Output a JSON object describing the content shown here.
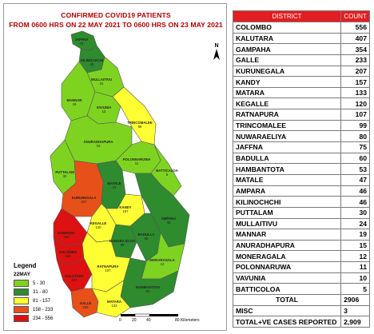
{
  "map": {
    "title_line1": "CONFIRMED COVID19 PATIENTS",
    "title_line2": "FROM 0600 HRS ON 22 MAY 2021 TO 0600 HRS ON 23 MAY 2021",
    "north_label": "N",
    "districts": [
      {
        "name": "JAFFNA",
        "count": "75",
        "color": "#2e8b2e"
      },
      {
        "name": "KILINOCHCHI",
        "count": "46",
        "color": "#2e8b2e"
      },
      {
        "name": "MULLAITIVU",
        "count": "24",
        "color": "#7ed321"
      },
      {
        "name": "MANNAR",
        "count": "19",
        "color": "#7ed321"
      },
      {
        "name": "VAVUNIA",
        "count": "10",
        "color": "#7ed321"
      },
      {
        "name": "TRINCOMALEE",
        "count": "99",
        "color": "#ffff33"
      },
      {
        "name": "ANURADHAPURA",
        "count": "15",
        "color": "#7ed321"
      },
      {
        "name": "PUTTALAM",
        "count": "30",
        "color": "#7ed321"
      },
      {
        "name": "POLONNARUWA",
        "count": "11",
        "color": "#7ed321"
      },
      {
        "name": "BATTICALOA",
        "count": "5",
        "color": "#7ed321"
      },
      {
        "name": "KURUNEGALA",
        "count": "207",
        "color": "#e8501a"
      },
      {
        "name": "MATALE",
        "count": "47",
        "color": "#2e8b2e"
      },
      {
        "name": "AMPARA",
        "count": "46",
        "color": "#2e8b2e"
      },
      {
        "name": "KANDY",
        "count": "157",
        "color": "#ffff33"
      },
      {
        "name": "KEGALLE",
        "count": "120",
        "color": "#ffff33"
      },
      {
        "name": "GAMPAHA",
        "count": "354",
        "color": "#dd1111"
      },
      {
        "name": "NUWARA ELIYA",
        "count": "80",
        "color": "#2e8b2e"
      },
      {
        "name": "BADULLA",
        "count": "60",
        "color": "#2e8b2e"
      },
      {
        "name": "COLOMBO",
        "count": "556",
        "color": "#dd1111"
      },
      {
        "name": "KALUTARA",
        "count": "407",
        "color": "#dd1111"
      },
      {
        "name": "RATNAPURA",
        "count": "107",
        "color": "#ffff33"
      },
      {
        "name": "MONARAGALA",
        "count": "12",
        "color": "#7ed321"
      },
      {
        "name": "GALLE",
        "count": "233",
        "color": "#e8501a"
      },
      {
        "name": "HAMBANTOTA",
        "count": "53",
        "color": "#2e8b2e"
      },
      {
        "name": "MATARA",
        "count": "133",
        "color": "#ffff33"
      }
    ],
    "legend": {
      "title": "Legend",
      "subtitle": "22MAY",
      "items": [
        {
          "label": "5 - 30",
          "color": "#7ed321"
        },
        {
          "label": "31 - 80",
          "color": "#2e8b2e"
        },
        {
          "label": "81 - 157",
          "color": "#ffff33"
        },
        {
          "label": "158 - 233",
          "color": "#e8501a"
        },
        {
          "label": "234 - 556",
          "color": "#dd1111"
        }
      ]
    },
    "scale": {
      "ticks": [
        "0",
        "20",
        "40",
        "80 Kilometers"
      ]
    }
  },
  "table": {
    "header_district": "DISTRICT",
    "header_count": "COUNT",
    "rows": [
      {
        "district": "COLOMBO",
        "count": "556"
      },
      {
        "district": "KALUTARA",
        "count": "407"
      },
      {
        "district": "GAMPAHA",
        "count": "354"
      },
      {
        "district": "GALLE",
        "count": "233"
      },
      {
        "district": "KURUNEGALA",
        "count": "207"
      },
      {
        "district": "KANDY",
        "count": "157"
      },
      {
        "district": "MATARA",
        "count": "133"
      },
      {
        "district": "KEGALLE",
        "count": "120"
      },
      {
        "district": "RATNAPURA",
        "count": "107"
      },
      {
        "district": "TRINCOMALEE",
        "count": "99"
      },
      {
        "district": "NUWARAELIYA",
        "count": "80"
      },
      {
        "district": "JAFFNA",
        "count": "75"
      },
      {
        "district": "BADULLA",
        "count": "60"
      },
      {
        "district": "HAMBANTOTA",
        "count": "53"
      },
      {
        "district": "MATALE",
        "count": "47"
      },
      {
        "district": "AMPARA",
        "count": "46"
      },
      {
        "district": "KILINOCHCHI",
        "count": "46"
      },
      {
        "district": "PUTTALAM",
        "count": "30"
      },
      {
        "district": "MULLAITIVU",
        "count": "24"
      },
      {
        "district": "MANNAR",
        "count": "19"
      },
      {
        "district": "ANURADHAPURA",
        "count": "15"
      },
      {
        "district": "MONERAGALA",
        "count": "12"
      },
      {
        "district": "POLONNARUWA",
        "count": "11"
      },
      {
        "district": "VAVUNIA",
        "count": "10"
      },
      {
        "district": "BATTICOLOA",
        "count": "5"
      }
    ],
    "total_label": "TOTAL",
    "total_value": "2906",
    "misc_label": "MISC",
    "misc_value": "3",
    "reported_label": "TOTAL+VE CASES REPORTED",
    "reported_value": "2,909"
  }
}
